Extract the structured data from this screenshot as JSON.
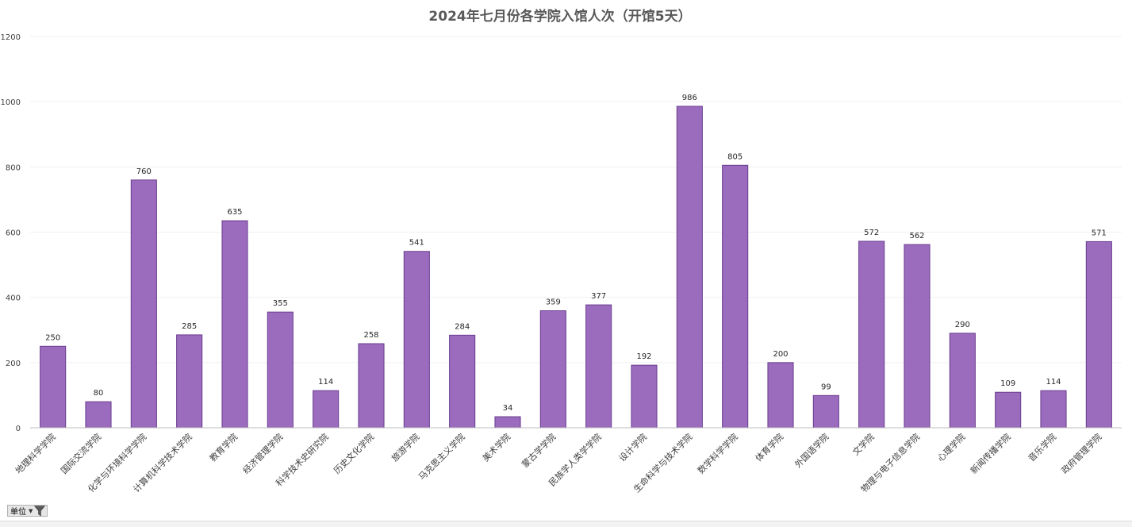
{
  "chart_data": {
    "type": "bar",
    "title": "2024年七月份各学院入馆人次（开馆5天）",
    "xlabel": "",
    "ylabel": "",
    "ylim": [
      0,
      1200
    ],
    "yticks": [
      0,
      200,
      400,
      600,
      800,
      1000,
      1200
    ],
    "grid": true,
    "legend": "none",
    "bar_color": "#9b6bbd",
    "bar_edge_color": "#6a3d8f",
    "categories": [
      "地理科学学院",
      "国际交流学院",
      "化学与环境科学学院",
      "计算机科学技术学院",
      "教育学院",
      "经济管理学院",
      "科学技术史研究院",
      "历史文化学院",
      "旅游学院",
      "马克思主义学院",
      "美术学院",
      "蒙古学学院",
      "民族学人类学学院",
      "设计学院",
      "生命科学与技术学院",
      "数学科学学院",
      "体育学院",
      "外国语学院",
      "文学院",
      "物理与电子信息学院",
      "心理学院",
      "新闻传播学院",
      "音乐学院",
      "政府管理学院"
    ],
    "values": [
      250,
      80,
      760,
      285,
      635,
      355,
      114,
      258,
      541,
      284,
      34,
      359,
      377,
      192,
      986,
      805,
      200,
      99,
      572,
      562,
      290,
      109,
      114,
      571
    ]
  },
  "field_button": {
    "label": "单位",
    "dropdown_icon": "dropdown-arrow-icon",
    "filter_icon": "filter-icon"
  }
}
